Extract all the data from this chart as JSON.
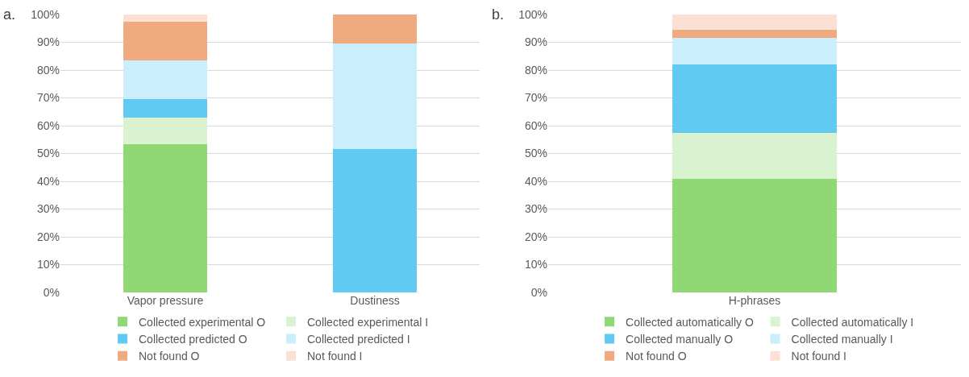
{
  "chart_data": [
    {
      "type": "bar",
      "stacked": true,
      "categories": [
        "Vapor pressure",
        "Dustiness"
      ],
      "ylim": [
        0,
        100
      ],
      "yticks": [
        {
          "value": 0,
          "label": "0%"
        },
        {
          "value": 10,
          "label": "10%"
        },
        {
          "value": 20,
          "label": "20%"
        },
        {
          "value": 30,
          "label": "30%"
        },
        {
          "value": 40,
          "label": "40%"
        },
        {
          "value": 50,
          "label": "50%"
        },
        {
          "value": 60,
          "label": "60%"
        },
        {
          "value": 70,
          "label": "70%"
        },
        {
          "value": 80,
          "label": "80%"
        },
        {
          "value": 90,
          "label": "90%"
        },
        {
          "value": 100,
          "label": "100%"
        }
      ],
      "grid": "y",
      "legend": "bottom",
      "annotations": [
        "a."
      ],
      "series": [
        {
          "name": "Collected experimental O",
          "color": "#8fd873",
          "values": [
            53.4,
            0
          ]
        },
        {
          "name": "Collected experimental I",
          "color": "#d9f2d0",
          "values": [
            9.4,
            0
          ]
        },
        {
          "name": "Collected predicted O",
          "color": "#61caf2",
          "values": [
            6.8,
            51.6
          ]
        },
        {
          "name": "Collected predicted I",
          "color": "#caeefb",
          "values": [
            14.0,
            38.0
          ]
        },
        {
          "name": "Not found O",
          "color": "#f0aa80",
          "values": [
            13.9,
            10.4
          ]
        },
        {
          "name": "Not found I",
          "color": "#fae0d5",
          "values": [
            2.5,
            0
          ]
        }
      ]
    },
    {
      "type": "bar",
      "stacked": true,
      "categories": [
        "H-phrases"
      ],
      "ylim": [
        0,
        100
      ],
      "yticks": [
        {
          "value": 0,
          "label": "0%"
        },
        {
          "value": 10,
          "label": "10%"
        },
        {
          "value": 20,
          "label": "20%"
        },
        {
          "value": 30,
          "label": "30%"
        },
        {
          "value": 40,
          "label": "40%"
        },
        {
          "value": 50,
          "label": "50%"
        },
        {
          "value": 60,
          "label": "60%"
        },
        {
          "value": 70,
          "label": "70%"
        },
        {
          "value": 80,
          "label": "80%"
        },
        {
          "value": 90,
          "label": "90%"
        },
        {
          "value": 100,
          "label": "100%"
        }
      ],
      "grid": "y",
      "legend": "bottom",
      "annotations": [
        "b."
      ],
      "series": [
        {
          "name": "Collected automatically O",
          "color": "#8fd873",
          "values": [
            41.0
          ]
        },
        {
          "name": "Collected automatically I",
          "color": "#d9f2d0",
          "values": [
            16.3
          ]
        },
        {
          "name": "Collected manually O",
          "color": "#61caf2",
          "values": [
            24.8
          ]
        },
        {
          "name": "Collected manually I",
          "color": "#caeefb",
          "values": [
            9.6
          ]
        },
        {
          "name": "Not found O",
          "color": "#f0aa80",
          "values": [
            2.8
          ]
        },
        {
          "name": "Not found I",
          "color": "#fae0d5",
          "values": [
            5.5
          ]
        }
      ]
    }
  ]
}
